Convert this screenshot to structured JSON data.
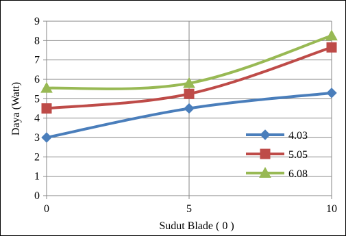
{
  "chart_data": {
    "type": "line",
    "title": "",
    "xlabel": "Sudut Blade ( 0 )",
    "ylabel": "Daya (Watt)",
    "x": [
      0,
      5,
      10
    ],
    "xticks": [
      "0",
      "5",
      "10"
    ],
    "ylim": [
      0,
      9
    ],
    "yticks": [
      "0",
      "1",
      "2",
      "3",
      "4",
      "5",
      "6",
      "7",
      "8",
      "9"
    ],
    "grid": true,
    "legend_position": "lower-right",
    "series": [
      {
        "name": "4.03",
        "values": [
          3.0,
          4.5,
          5.3
        ],
        "color": "#4a7ebb",
        "marker": "diamond"
      },
      {
        "name": "5.05",
        "values": [
          4.5,
          5.25,
          7.65
        ],
        "color": "#be4b48",
        "marker": "square"
      },
      {
        "name": "6.08",
        "values": [
          5.55,
          5.8,
          8.25
        ],
        "color": "#98b954",
        "marker": "triangle"
      }
    ]
  }
}
